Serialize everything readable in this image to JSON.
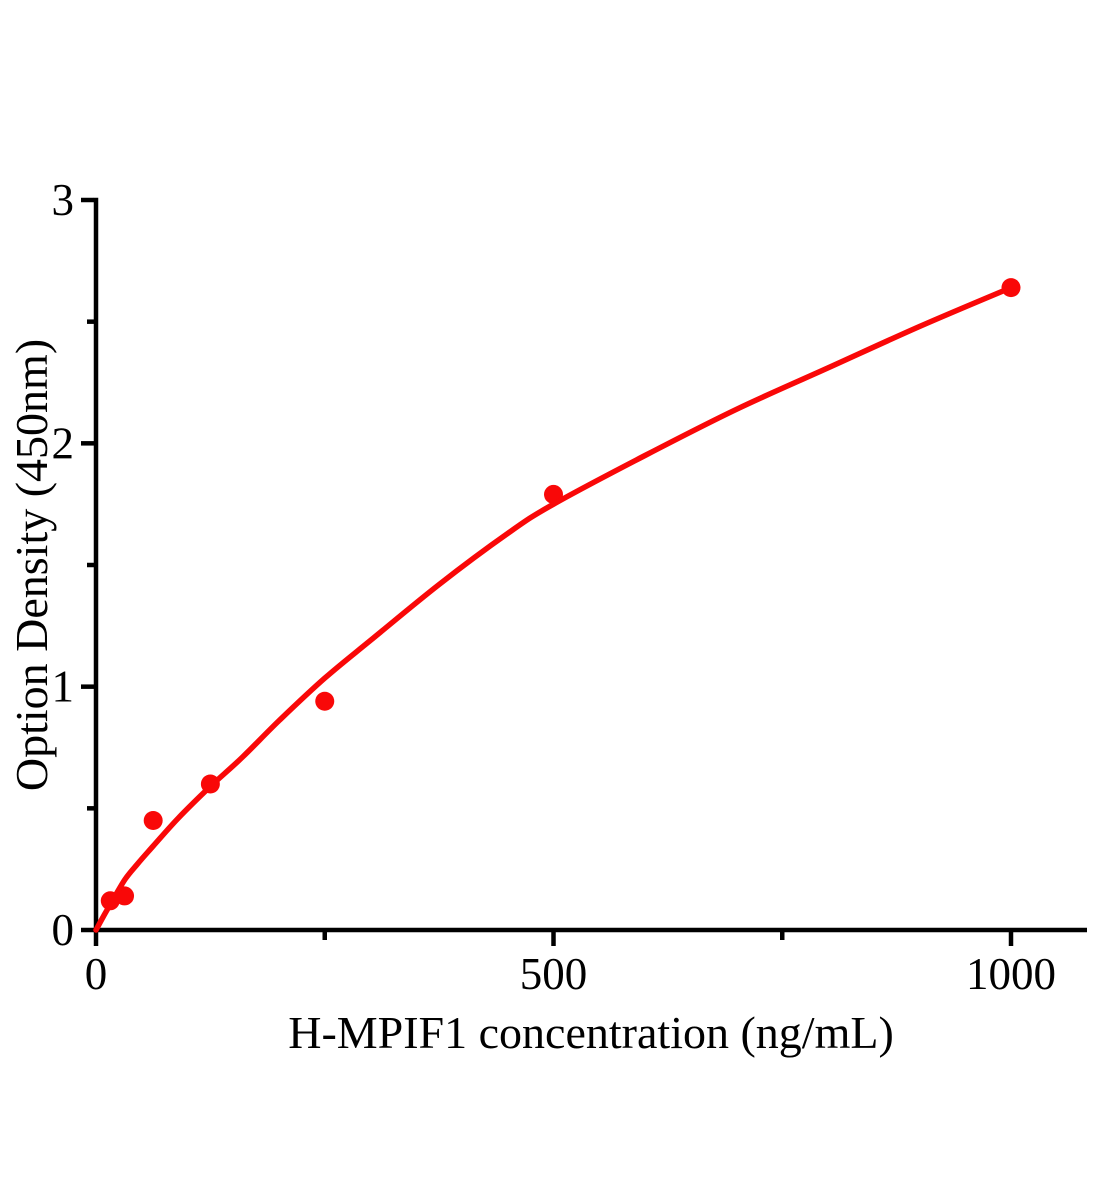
{
  "chart_data": {
    "type": "scatter",
    "title": "",
    "xlabel": "H-MPIF1 concentration (ng/mL)",
    "ylabel": "Option Density (450nm)",
    "xlim": [
      0,
      1080
    ],
    "ylim": [
      0,
      3
    ],
    "grid": false,
    "legend": "none",
    "axis_color": "#000000",
    "background_color": "#ffffff",
    "accent_color": "#f90808",
    "x_major_ticks": [
      0,
      500,
      1000
    ],
    "x_tick_labels": [
      "0",
      "500",
      "1000"
    ],
    "x_minor_ticks": [
      250,
      750
    ],
    "y_major_ticks": [
      0,
      1,
      2,
      3
    ],
    "y_tick_labels": [
      "0",
      "1",
      "2",
      "3"
    ],
    "y_minor_ticks": [
      0.5,
      1.5,
      2.5
    ],
    "series": [
      {
        "name": "standard-data-points",
        "type": "scatter",
        "marker": "filled-circle",
        "color": "#f90808",
        "x": [
          15.6,
          31.2,
          62.5,
          125,
          250,
          500,
          1000
        ],
        "y": [
          0.12,
          0.14,
          0.45,
          0.6,
          0.94,
          1.79,
          2.64
        ]
      },
      {
        "name": "fitted-curve",
        "type": "line",
        "color": "#f90808",
        "x": [
          0,
          8,
          15.6,
          31.2,
          45,
          62.5,
          90,
          125,
          160,
          200,
          250,
          300,
          375,
          450,
          500,
          600,
          700,
          800,
          900,
          1000
        ],
        "y": [
          0,
          0.055,
          0.105,
          0.205,
          0.27,
          0.345,
          0.46,
          0.59,
          0.71,
          0.86,
          1.035,
          1.19,
          1.42,
          1.63,
          1.75,
          1.95,
          2.14,
          2.31,
          2.48,
          2.64
        ]
      }
    ]
  }
}
